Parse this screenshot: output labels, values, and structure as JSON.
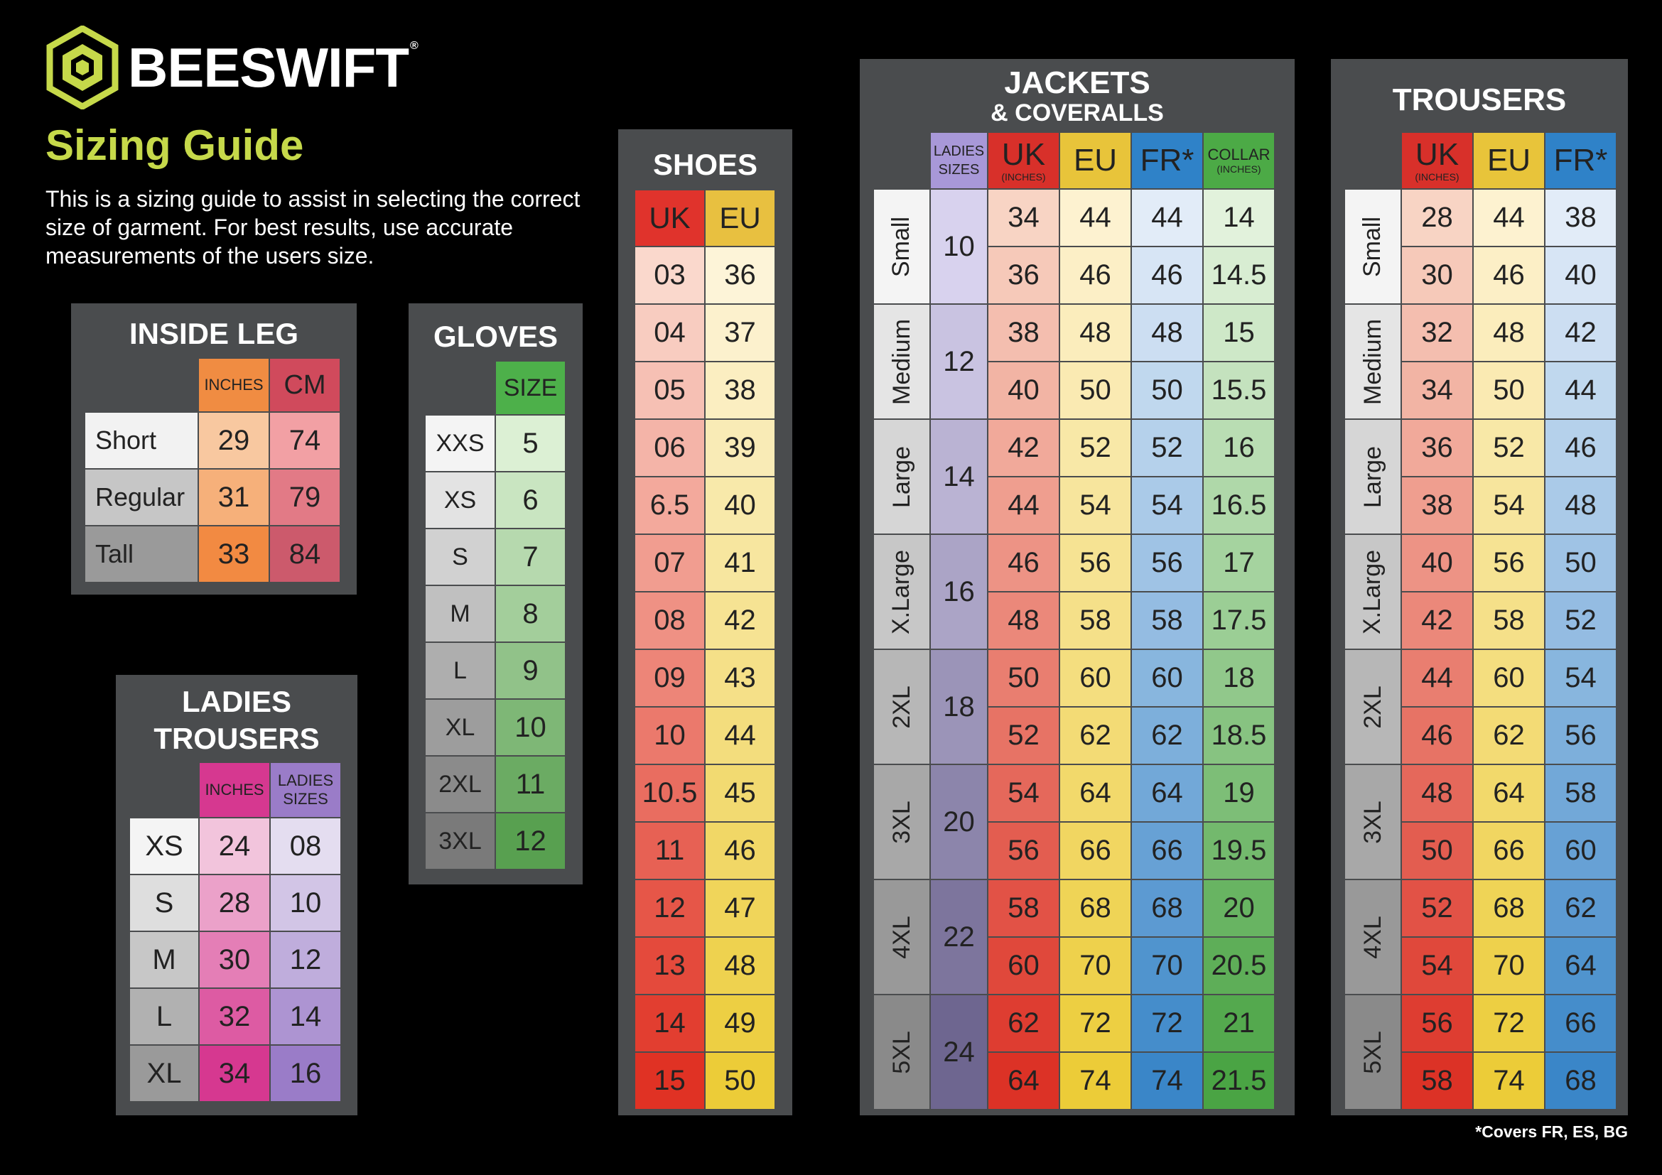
{
  "brand": {
    "name": "BEESWIFT",
    "reg": "®",
    "icon": "hexagon-logo-icon",
    "accent": "#c6d94a"
  },
  "title": "Sizing Guide",
  "intro_lines": [
    "This is a sizing guide to assist in selecting the correct",
    "size of garment. For best results, use accurate",
    "measurements of the users size."
  ],
  "inside_leg": {
    "title": "INSIDE LEG",
    "headers": [
      "INCHES",
      "CM"
    ],
    "rows": [
      {
        "label": "Short",
        "values": [
          "29",
          "74"
        ]
      },
      {
        "label": "Regular",
        "values": [
          "31",
          "79"
        ]
      },
      {
        "label": "Tall",
        "values": [
          "33",
          "84"
        ]
      }
    ]
  },
  "gloves": {
    "title": "GLOVES",
    "header": "SIZE",
    "rows": [
      {
        "label": "XXS",
        "value": "5"
      },
      {
        "label": "XS",
        "value": "6"
      },
      {
        "label": "S",
        "value": "7"
      },
      {
        "label": "M",
        "value": "8"
      },
      {
        "label": "L",
        "value": "9"
      },
      {
        "label": "XL",
        "value": "10"
      },
      {
        "label": "2XL",
        "value": "11"
      },
      {
        "label": "3XL",
        "value": "12"
      }
    ]
  },
  "ladies_trousers": {
    "title_lines": [
      "LADIES",
      "TROUSERS"
    ],
    "headers": [
      [
        "INCHES"
      ],
      [
        "LADIES",
        "SIZES"
      ]
    ],
    "rows": [
      {
        "label": "XS",
        "values": [
          "24",
          "08"
        ]
      },
      {
        "label": "S",
        "values": [
          "28",
          "10"
        ]
      },
      {
        "label": "M",
        "values": [
          "30",
          "12"
        ]
      },
      {
        "label": "L",
        "values": [
          "32",
          "14"
        ]
      },
      {
        "label": "XL",
        "values": [
          "34",
          "16"
        ]
      }
    ]
  },
  "shoes": {
    "title": "SHOES",
    "headers": [
      "UK",
      "EU"
    ],
    "rows": [
      [
        "03",
        "36"
      ],
      [
        "04",
        "37"
      ],
      [
        "05",
        "38"
      ],
      [
        "06",
        "39"
      ],
      [
        "6.5",
        "40"
      ],
      [
        "07",
        "41"
      ],
      [
        "08",
        "42"
      ],
      [
        "09",
        "43"
      ],
      [
        "10",
        "44"
      ],
      [
        "10.5",
        "45"
      ],
      [
        "11",
        "46"
      ],
      [
        "12",
        "47"
      ],
      [
        "13",
        "48"
      ],
      [
        "14",
        "49"
      ],
      [
        "15",
        "50"
      ]
    ]
  },
  "jackets": {
    "title_lines": [
      "JACKETS",
      "& COVERALLS"
    ],
    "headers": [
      {
        "main": "LADIES",
        "main2": "SIZES"
      },
      {
        "main": "UK",
        "sub": "(INCHES)"
      },
      {
        "main": "EU"
      },
      {
        "main": "FR*"
      },
      {
        "main": "COLLAR",
        "sub": "(INCHES)"
      }
    ],
    "groups": [
      {
        "size": "Small",
        "ladies": "10",
        "rows": [
          [
            "34",
            "44",
            "44",
            "14"
          ],
          [
            "36",
            "46",
            "46",
            "14.5"
          ]
        ]
      },
      {
        "size": "Medium",
        "ladies": "12",
        "rows": [
          [
            "38",
            "48",
            "48",
            "15"
          ],
          [
            "40",
            "50",
            "50",
            "15.5"
          ]
        ]
      },
      {
        "size": "Large",
        "ladies": "14",
        "rows": [
          [
            "42",
            "52",
            "52",
            "16"
          ],
          [
            "44",
            "54",
            "54",
            "16.5"
          ]
        ]
      },
      {
        "size": "X.Large",
        "ladies": "16",
        "rows": [
          [
            "46",
            "56",
            "56",
            "17"
          ],
          [
            "48",
            "58",
            "58",
            "17.5"
          ]
        ]
      },
      {
        "size": "2XL",
        "ladies": "18",
        "rows": [
          [
            "50",
            "60",
            "60",
            "18"
          ],
          [
            "52",
            "62",
            "62",
            "18.5"
          ]
        ]
      },
      {
        "size": "3XL",
        "ladies": "20",
        "rows": [
          [
            "54",
            "64",
            "64",
            "19"
          ],
          [
            "56",
            "66",
            "66",
            "19.5"
          ]
        ]
      },
      {
        "size": "4XL",
        "ladies": "22",
        "rows": [
          [
            "58",
            "68",
            "68",
            "20"
          ],
          [
            "60",
            "70",
            "70",
            "20.5"
          ]
        ]
      },
      {
        "size": "5XL",
        "ladies": "24",
        "rows": [
          [
            "62",
            "72",
            "72",
            "21"
          ],
          [
            "64",
            "74",
            "74",
            "21.5"
          ]
        ]
      }
    ]
  },
  "trousers": {
    "title": "TROUSERS",
    "headers": [
      {
        "main": "UK",
        "sub": "(INCHES)"
      },
      {
        "main": "EU"
      },
      {
        "main": "FR*"
      }
    ],
    "groups": [
      {
        "size": "Small",
        "rows": [
          [
            "28",
            "44",
            "38"
          ],
          [
            "30",
            "46",
            "40"
          ]
        ]
      },
      {
        "size": "Medium",
        "rows": [
          [
            "32",
            "48",
            "42"
          ],
          [
            "34",
            "50",
            "44"
          ]
        ]
      },
      {
        "size": "Large",
        "rows": [
          [
            "36",
            "52",
            "46"
          ],
          [
            "38",
            "54",
            "48"
          ]
        ]
      },
      {
        "size": "X.Large",
        "rows": [
          [
            "40",
            "56",
            "50"
          ],
          [
            "42",
            "58",
            "52"
          ]
        ]
      },
      {
        "size": "2XL",
        "rows": [
          [
            "44",
            "60",
            "54"
          ],
          [
            "46",
            "62",
            "56"
          ]
        ]
      },
      {
        "size": "3XL",
        "rows": [
          [
            "48",
            "64",
            "58"
          ],
          [
            "50",
            "66",
            "60"
          ]
        ]
      },
      {
        "size": "4XL",
        "rows": [
          [
            "52",
            "68",
            "62"
          ],
          [
            "54",
            "70",
            "64"
          ]
        ]
      },
      {
        "size": "5XL",
        "rows": [
          [
            "56",
            "72",
            "66"
          ],
          [
            "58",
            "74",
            "68"
          ]
        ]
      }
    ]
  },
  "footnote": "*Covers FR, ES, BG"
}
